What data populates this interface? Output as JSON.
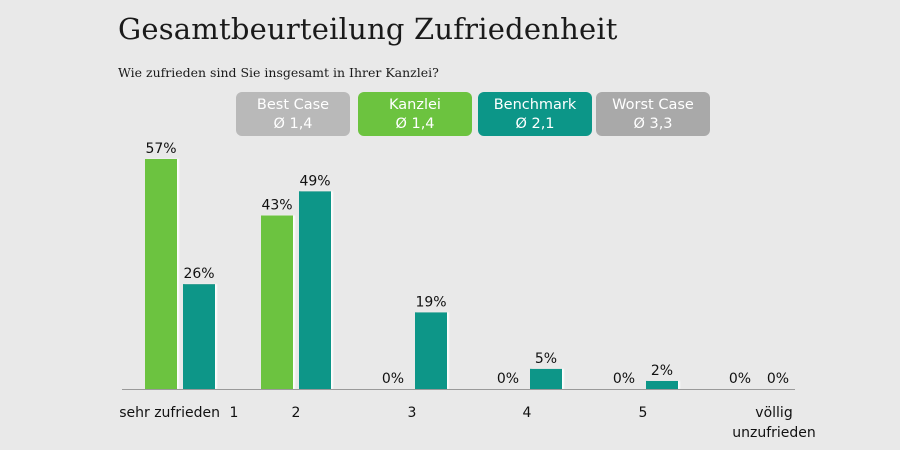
{
  "title": "Gesamtbeurteilung Zufriedenheit",
  "subtitle": "Wie zufrieden sind Sie insgesamt in Ihrer Kanzlei?",
  "legend": [
    {
      "label": "Best Case",
      "avg": "Ø 1,4",
      "color": "#b9b9b9"
    },
    {
      "label": "Kanzlei",
      "avg": "Ø 1,4",
      "color": "#6cc33f"
    },
    {
      "label": "Benchmark",
      "avg": "Ø 2,1",
      "color": "#0c9688"
    },
    {
      "label": "Worst Case",
      "avg": "Ø 3,3",
      "color": "#a9a9a9"
    }
  ],
  "chart_data": {
    "type": "bar",
    "categories": [
      "1",
      "2",
      "3",
      "4",
      "5",
      "völlig unzufrieden"
    ],
    "category_labels": [
      {
        "prefix": "sehr zufrieden",
        "label": "1"
      },
      {
        "prefix": "",
        "label": "2"
      },
      {
        "prefix": "",
        "label": "3"
      },
      {
        "prefix": "",
        "label": "4"
      },
      {
        "prefix": "",
        "label": "5"
      },
      {
        "prefix": "",
        "label": "völlig unzufrieden"
      }
    ],
    "series": [
      {
        "name": "Kanzlei",
        "values": [
          57,
          43,
          0,
          0,
          0,
          0
        ],
        "labels": [
          "57%",
          "43%",
          "0%",
          "0%",
          "0%",
          "0%"
        ],
        "color": "#6cc33f"
      },
      {
        "name": "Benchmark",
        "values": [
          26,
          49,
          19,
          5,
          2,
          0
        ],
        "labels": [
          "26%",
          "49%",
          "19%",
          "5%",
          "2%",
          "0%"
        ],
        "color": "#0c9688"
      }
    ],
    "unit": "%",
    "ylim": [
      0,
      60
    ],
    "grid": false,
    "legend_position": "top"
  }
}
